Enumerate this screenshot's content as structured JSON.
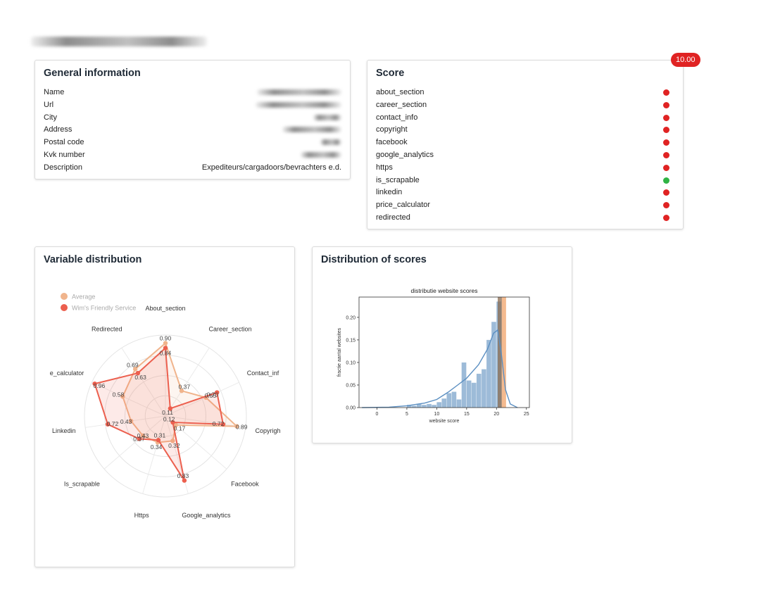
{
  "header": {
    "title_redacted": true
  },
  "general": {
    "title": "General information",
    "rows": [
      {
        "label": "Name",
        "value": "",
        "redacted": true
      },
      {
        "label": "Url",
        "value": "",
        "redacted": true
      },
      {
        "label": "City",
        "value": "",
        "redacted": true
      },
      {
        "label": "Address",
        "value": "",
        "redacted": true
      },
      {
        "label": "Postal code",
        "value": "",
        "redacted": true
      },
      {
        "label": "Kvk number",
        "value": "",
        "redacted": true
      },
      {
        "label": "Description",
        "value": "Expediteurs/cargadoors/bevrachters e.d.",
        "redacted": false
      }
    ]
  },
  "score": {
    "title": "Score",
    "badge": "10.00",
    "items": [
      {
        "label": "about_section",
        "status": "red"
      },
      {
        "label": "career_section",
        "status": "red"
      },
      {
        "label": "contact_info",
        "status": "red"
      },
      {
        "label": "copyright",
        "status": "red"
      },
      {
        "label": "facebook",
        "status": "red"
      },
      {
        "label": "google_analytics",
        "status": "red"
      },
      {
        "label": "https",
        "status": "red"
      },
      {
        "label": "is_scrapable",
        "status": "green"
      },
      {
        "label": "linkedin",
        "status": "red"
      },
      {
        "label": "price_calculator",
        "status": "red"
      },
      {
        "label": "redirected",
        "status": "red"
      }
    ],
    "colors": {
      "red": "#e02323",
      "green": "#2fb344"
    }
  },
  "variable_distribution": {
    "title": "Variable distribution"
  },
  "scores_distribution": {
    "title": "Distribution of scores"
  },
  "chart_data": [
    {
      "type": "radar",
      "legend": [
        "Average",
        "Wim's Friendly Service"
      ],
      "legend_position": "top-left",
      "axes": [
        "About_section",
        "Career_section",
        "Contact_info",
        "Copyright",
        "Facebook",
        "Google_analytics",
        "Https",
        "Is_scrapable",
        "Linkedin",
        "Price_calculator",
        "Redirected"
      ],
      "axes_displayed": [
        "About_section",
        "Career_section",
        "Contact_inf",
        "Copyrigh",
        "Facebook",
        "Google_analytics",
        "Https",
        "Is_scrapable",
        "Linkedin",
        "e_calculator",
        "Redirected"
      ],
      "series": [
        {
          "name": "Average",
          "color": "#f0b48c",
          "values": [
            0.9,
            0.37,
            0.55,
            0.89,
            0.17,
            0.32,
            0.34,
            0.37,
            0.43,
            0.58,
            0.69
          ]
        },
        {
          "name": "Wim's Friendly Service",
          "color": "#ec5f4e",
          "values": [
            0.84,
            0.11,
            0.7,
            0.72,
            0.12,
            0.83,
            0.31,
            0.43,
            0.72,
            0.96,
            0.63
          ]
        }
      ],
      "range": [
        0,
        1
      ]
    },
    {
      "type": "histogram",
      "title": "distributie website scores",
      "xlabel": "website score",
      "ylabel": "fractie aantal websites",
      "xlim": [
        -3,
        25.5
      ],
      "ylim": [
        0,
        0.245
      ],
      "xticks": [
        0,
        5,
        10,
        15,
        20,
        25
      ],
      "yticks": [
        0.0,
        0.05,
        0.1,
        0.15,
        0.2
      ],
      "ytick_labels": [
        "0.00",
        "0.05",
        "0.10",
        "0.15",
        "0.20"
      ],
      "bin_width": 0.83,
      "bins": [
        {
          "x": 5.0,
          "y": 0.006
        },
        {
          "x": 5.83,
          "y": 0.004
        },
        {
          "x": 6.66,
          "y": 0.008
        },
        {
          "x": 7.5,
          "y": 0.006
        },
        {
          "x": 8.33,
          "y": 0.008
        },
        {
          "x": 9.16,
          "y": 0.006
        },
        {
          "x": 10.0,
          "y": 0.012
        },
        {
          "x": 10.83,
          "y": 0.02
        },
        {
          "x": 11.66,
          "y": 0.032
        },
        {
          "x": 12.5,
          "y": 0.035
        },
        {
          "x": 13.33,
          "y": 0.018
        },
        {
          "x": 14.16,
          "y": 0.1
        },
        {
          "x": 15.0,
          "y": 0.06
        },
        {
          "x": 15.83,
          "y": 0.055
        },
        {
          "x": 16.66,
          "y": 0.075
        },
        {
          "x": 17.5,
          "y": 0.085
        },
        {
          "x": 18.33,
          "y": 0.15
        },
        {
          "x": 19.16,
          "y": 0.19
        },
        {
          "x": 20.0,
          "y": 0.235
        }
      ],
      "kde": [
        [
          -2.5,
          0.0
        ],
        [
          2,
          0.001
        ],
        [
          5,
          0.004
        ],
        [
          8,
          0.01
        ],
        [
          10,
          0.018
        ],
        [
          12,
          0.035
        ],
        [
          13.5,
          0.05
        ],
        [
          15,
          0.065
        ],
        [
          17,
          0.095
        ],
        [
          18.5,
          0.13
        ],
        [
          19.5,
          0.165
        ],
        [
          20.2,
          0.172
        ],
        [
          20.8,
          0.12
        ],
        [
          21.5,
          0.04
        ],
        [
          22.3,
          0.008
        ],
        [
          23.5,
          0.0
        ]
      ],
      "highlight": [
        {
          "x_start": 20.2,
          "x_end": 20.9,
          "color": "#8a6b50"
        },
        {
          "x_start": 20.9,
          "x_end": 21.6,
          "color": "#f0a36a"
        }
      ],
      "bar_color": "#9dbbd8",
      "kde_color": "#5b8fc2"
    }
  ]
}
